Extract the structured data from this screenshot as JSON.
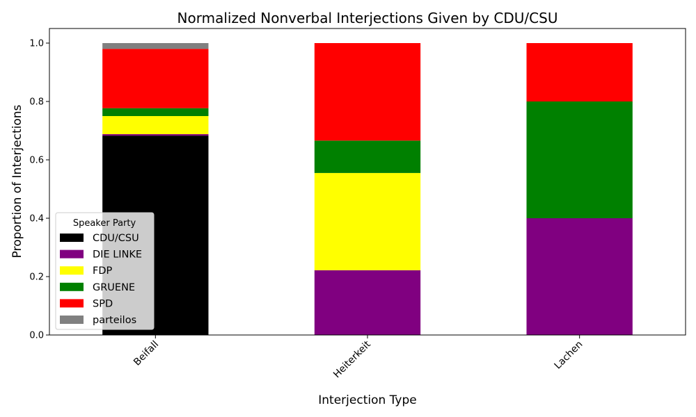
{
  "chart_data": {
    "type": "bar",
    "stacked": true,
    "title": "Normalized Nonverbal Interjections Given by CDU/CSU",
    "xlabel": "Interjection Type",
    "ylabel": "Proportion of Interjections",
    "ylim": [
      0,
      1.05
    ],
    "yticks": [
      "0.0",
      "0.2",
      "0.4",
      "0.6",
      "0.8",
      "1.0"
    ],
    "categories": [
      "Beifall",
      "Heiterkeit",
      "Lachen"
    ],
    "series": [
      {
        "name": "CDU/CSU",
        "color": "#000000",
        "values": [
          0.683,
          0.0,
          0.0
        ]
      },
      {
        "name": "DIE LINKE",
        "color": "#800080",
        "values": [
          0.005,
          0.222,
          0.4
        ]
      },
      {
        "name": "FDP",
        "color": "#ffff00",
        "values": [
          0.062,
          0.333,
          0.0
        ]
      },
      {
        "name": "GRUENE",
        "color": "#008000",
        "values": [
          0.027,
          0.111,
          0.4
        ]
      },
      {
        "name": "SPD",
        "color": "#ff0000",
        "values": [
          0.203,
          0.334,
          0.2
        ]
      },
      {
        "name": "parteilos",
        "color": "#808080",
        "values": [
          0.02,
          0.0,
          0.0
        ]
      }
    ],
    "legend": {
      "title": "Speaker Party",
      "placement": "lower-left"
    },
    "grid": false
  }
}
